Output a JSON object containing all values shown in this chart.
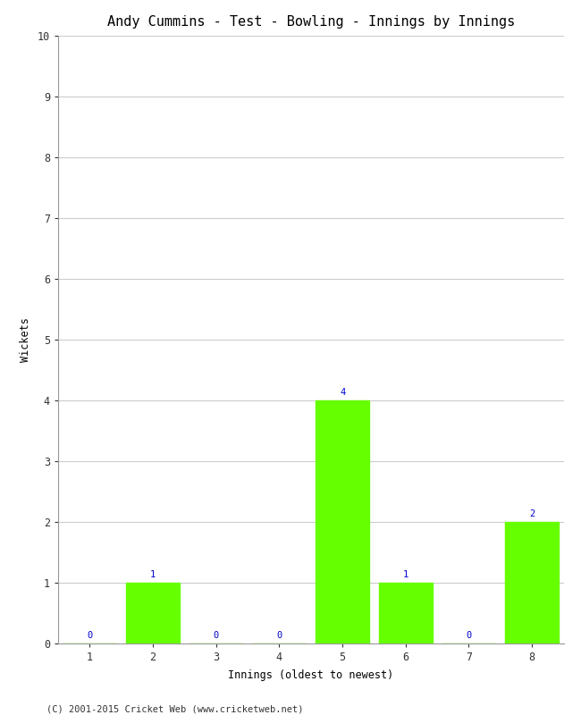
{
  "title": "Andy Cummins - Test - Bowling - Innings by Innings",
  "xlabel": "Innings (oldest to newest)",
  "ylabel": "Wickets",
  "categories": [
    "1",
    "2",
    "3",
    "4",
    "5",
    "6",
    "7",
    "8"
  ],
  "values": [
    0,
    1,
    0,
    0,
    4,
    1,
    0,
    2
  ],
  "bar_color": "#66ff00",
  "bar_edge_color": "#66ff00",
  "ylim": [
    0,
    10
  ],
  "yticks": [
    0,
    1,
    2,
    3,
    4,
    5,
    6,
    7,
    8,
    9,
    10
  ],
  "annotation_color": "#0000cc",
  "annotation_fontsize": 7.5,
  "title_fontsize": 11,
  "label_fontsize": 8.5,
  "tick_fontsize": 8.5,
  "grid_color": "#cccccc",
  "background_color": "#ffffff",
  "footer_text": "(C) 2001-2015 Cricket Web (www.cricketweb.net)",
  "footer_fontsize": 7.5
}
